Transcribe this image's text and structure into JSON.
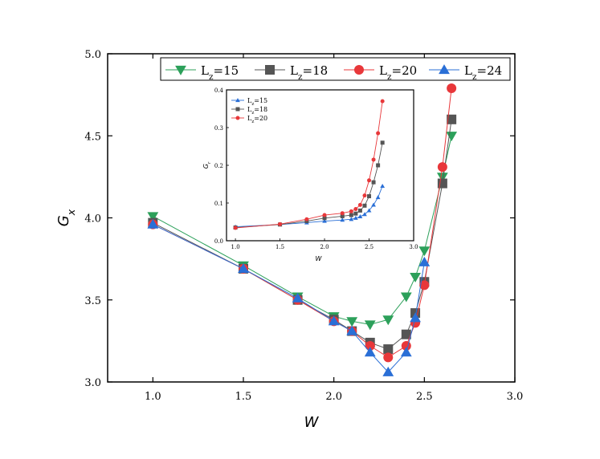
{
  "chart_data": [
    {
      "type": "line",
      "xlabel": "W",
      "ylabel": "G",
      "ylabel_sub": "x",
      "xlim": [
        0.75,
        3.0
      ],
      "ylim": [
        3.0,
        5.0
      ],
      "xticks": [
        "1.0",
        "1.5",
        "2.0",
        "2.5",
        "3.0"
      ],
      "yticks": [
        "3.0",
        "3.5",
        "4.0",
        "4.5",
        "5.0"
      ],
      "legend": "top-right",
      "series": [
        {
          "name": "Lz=15",
          "label_main": "L",
          "label_sub": "z",
          "label_rest": "=15",
          "color": "#2ca05a",
          "marker": "triangle-down",
          "x": [
            1.0,
            1.5,
            1.8,
            2.0,
            2.1,
            2.2,
            2.3,
            2.4,
            2.45,
            2.5,
            2.6,
            2.65
          ],
          "y": [
            4.01,
            3.71,
            3.52,
            3.4,
            3.37,
            3.35,
            3.38,
            3.52,
            3.64,
            3.8,
            4.25,
            4.5
          ]
        },
        {
          "name": "Lz=18",
          "label_main": "L",
          "label_sub": "z",
          "label_rest": "=18",
          "color": "#555555",
          "marker": "square",
          "x": [
            1.0,
            1.5,
            1.8,
            2.0,
            2.1,
            2.2,
            2.3,
            2.4,
            2.45,
            2.5,
            2.6,
            2.65
          ],
          "y": [
            3.97,
            3.69,
            3.5,
            3.38,
            3.31,
            3.24,
            3.2,
            3.29,
            3.42,
            3.61,
            4.21,
            4.6
          ]
        },
        {
          "name": "Lz=20",
          "label_main": "L",
          "label_sub": "z",
          "label_rest": "=20",
          "color": "#e8373a",
          "marker": "circle",
          "x": [
            1.0,
            1.5,
            1.8,
            2.0,
            2.1,
            2.2,
            2.3,
            2.4,
            2.45,
            2.5,
            2.6,
            2.65
          ],
          "y": [
            3.96,
            3.69,
            3.5,
            3.37,
            3.31,
            3.22,
            3.15,
            3.22,
            3.36,
            3.59,
            4.31,
            4.79
          ]
        },
        {
          "name": "Lz=24",
          "label_main": "L",
          "label_sub": "z",
          "label_rest": "=24",
          "color": "#2a6fd6",
          "marker": "triangle-up",
          "x": [
            1.0,
            1.5,
            1.8,
            2.0,
            2.1,
            2.2,
            2.3,
            2.4,
            2.45,
            2.5
          ],
          "y": [
            3.96,
            3.69,
            3.51,
            3.37,
            3.31,
            3.18,
            3.06,
            3.18,
            3.39,
            3.73
          ]
        }
      ]
    },
    {
      "type": "line",
      "xlabel": "W",
      "ylabel": "G",
      "ylabel_sub": "r",
      "xlim": [
        0.9,
        3.0
      ],
      "ylim": [
        0.0,
        0.4
      ],
      "xticks": [
        "1.0",
        "1.5",
        "2.0",
        "2.5",
        "3.0"
      ],
      "yticks": [
        "0.0",
        "0.1",
        "0.2",
        "0.3",
        "0.4"
      ],
      "legend": "top-left",
      "series": [
        {
          "name": "Lz=15",
          "label_main": "L",
          "label_sub": "z",
          "label_rest": "=15",
          "color": "#2a6fd6",
          "marker": "triangle-up",
          "x": [
            1.0,
            1.5,
            1.8,
            2.0,
            2.2,
            2.3,
            2.35,
            2.4,
            2.45,
            2.5,
            2.55,
            2.6,
            2.65
          ],
          "y": [
            0.037,
            0.043,
            0.048,
            0.052,
            0.055,
            0.057,
            0.06,
            0.064,
            0.07,
            0.08,
            0.095,
            0.115,
            0.145
          ]
        },
        {
          "name": "Lz=18",
          "label_main": "L",
          "label_sub": "z",
          "label_rest": "=18",
          "color": "#555555",
          "marker": "square",
          "x": [
            1.0,
            1.5,
            1.8,
            2.0,
            2.2,
            2.3,
            2.35,
            2.4,
            2.45,
            2.5,
            2.55,
            2.6,
            2.65
          ],
          "y": [
            0.035,
            0.043,
            0.052,
            0.06,
            0.065,
            0.068,
            0.072,
            0.08,
            0.093,
            0.118,
            0.155,
            0.2,
            0.26
          ]
        },
        {
          "name": "Lz=20",
          "label_main": "L",
          "label_sub": "z",
          "label_rest": "=20",
          "color": "#e8373a",
          "marker": "circle",
          "x": [
            1.0,
            1.5,
            1.8,
            2.0,
            2.2,
            2.3,
            2.35,
            2.4,
            2.45,
            2.5,
            2.55,
            2.6,
            2.65
          ],
          "y": [
            0.034,
            0.044,
            0.057,
            0.068,
            0.073,
            0.078,
            0.084,
            0.095,
            0.12,
            0.16,
            0.215,
            0.285,
            0.37
          ]
        }
      ]
    }
  ]
}
